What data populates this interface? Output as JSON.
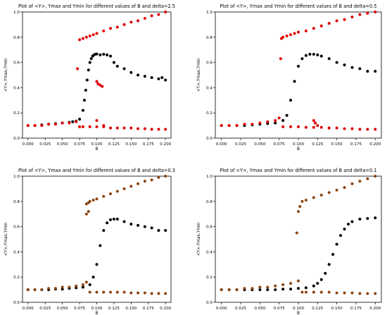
{
  "chart_data": [
    {
      "type": "scatter",
      "title": "Plot of <Y>, Ymax and Ymin for different values of B and delta=2.5",
      "xlabel": "B",
      "ylabel": "<Y>,Ymax,Ymin",
      "xlim": [
        -0.008,
        0.208
      ],
      "ylim": [
        0,
        1.0
      ],
      "xticks": [
        "0.000",
        "0.025",
        "0.050",
        "0.075",
        "0.100",
        "0.125",
        "0.150",
        "0.175",
        "0.200"
      ],
      "yticks": [
        "0.0",
        "0.2",
        "0.4",
        "0.6",
        "0.8",
        "1.0"
      ],
      "grid": false,
      "series": [
        {
          "color": "#000000",
          "role": "mean",
          "x": [
            0.0,
            0.01,
            0.02,
            0.03,
            0.04,
            0.05,
            0.06,
            0.065,
            0.07,
            0.075,
            0.08,
            0.082,
            0.084,
            0.086,
            0.088,
            0.09,
            0.092,
            0.094,
            0.096,
            0.098,
            0.1,
            0.105,
            0.11,
            0.115,
            0.12,
            0.125,
            0.13,
            0.14,
            0.15,
            0.16,
            0.17,
            0.18,
            0.19,
            0.195,
            0.2
          ],
          "y": [
            0.1,
            0.1,
            0.105,
            0.11,
            0.115,
            0.12,
            0.125,
            0.13,
            0.135,
            0.15,
            0.22,
            0.3,
            0.38,
            0.46,
            0.54,
            0.6,
            0.63,
            0.65,
            0.66,
            0.665,
            0.667,
            0.66,
            0.665,
            0.66,
            0.65,
            0.6,
            0.57,
            0.55,
            0.52,
            0.5,
            0.49,
            0.48,
            0.47,
            0.48,
            0.46
          ]
        },
        {
          "color": "#e00000",
          "role": "max",
          "x": [
            0.075,
            0.08,
            0.085,
            0.09,
            0.095,
            0.1,
            0.11,
            0.12,
            0.13,
            0.14,
            0.15,
            0.16,
            0.17,
            0.18,
            0.19,
            0.2
          ],
          "y": [
            0.78,
            0.79,
            0.8,
            0.81,
            0.82,
            0.83,
            0.85,
            0.87,
            0.88,
            0.9,
            0.92,
            0.93,
            0.95,
            0.97,
            0.98,
            1.0
          ]
        },
        {
          "color": "#e00000",
          "role": "min",
          "x": [
            0.0,
            0.01,
            0.02,
            0.03,
            0.04,
            0.05,
            0.06,
            0.07,
            0.075,
            0.08,
            0.09,
            0.1,
            0.11,
            0.12,
            0.13,
            0.14,
            0.15,
            0.16,
            0.17,
            0.18,
            0.19,
            0.2
          ],
          "y": [
            0.1,
            0.1,
            0.1,
            0.11,
            0.11,
            0.12,
            0.12,
            0.13,
            0.09,
            0.09,
            0.09,
            0.09,
            0.09,
            0.08,
            0.08,
            0.08,
            0.08,
            0.075,
            0.075,
            0.07,
            0.07,
            0.07
          ]
        },
        {
          "color": "#e00000",
          "role": "scatter",
          "x": [
            0.072,
            0.1,
            0.102,
            0.105,
            0.108,
            0.1,
            0.11
          ],
          "y": [
            0.55,
            0.45,
            0.43,
            0.42,
            0.41,
            0.14,
            0.1
          ]
        }
      ]
    },
    {
      "type": "scatter",
      "title": "Plot of <Y>, Ymax and Ymin for different values of B and delta=0.5",
      "xlabel": "B",
      "ylabel": "<Y>,Ymax,Ymin",
      "xlim": [
        -0.008,
        0.208
      ],
      "ylim": [
        0,
        1.0
      ],
      "xticks": [
        "0.000",
        "0.025",
        "0.050",
        "0.075",
        "0.100",
        "0.125",
        "0.150",
        "0.175",
        "0.200"
      ],
      "yticks": [
        "0.0",
        "0.2",
        "0.4",
        "0.6",
        "0.8",
        "1.0"
      ],
      "grid": false,
      "series": [
        {
          "color": "#000000",
          "role": "mean",
          "x": [
            0.0,
            0.01,
            0.02,
            0.03,
            0.04,
            0.05,
            0.06,
            0.07,
            0.08,
            0.085,
            0.09,
            0.095,
            0.1,
            0.105,
            0.11,
            0.115,
            0.12,
            0.125,
            0.13,
            0.14,
            0.15,
            0.16,
            0.17,
            0.18,
            0.19,
            0.2
          ],
          "y": [
            0.1,
            0.1,
            0.1,
            0.1,
            0.105,
            0.11,
            0.115,
            0.12,
            0.14,
            0.18,
            0.3,
            0.45,
            0.57,
            0.63,
            0.655,
            0.665,
            0.665,
            0.66,
            0.65,
            0.63,
            0.6,
            0.58,
            0.56,
            0.55,
            0.53,
            0.53
          ]
        },
        {
          "color": "#e00000",
          "role": "max",
          "x": [
            0.078,
            0.08,
            0.085,
            0.09,
            0.095,
            0.1,
            0.11,
            0.12,
            0.13,
            0.14,
            0.15,
            0.16,
            0.17,
            0.18,
            0.19,
            0.2
          ],
          "y": [
            0.79,
            0.8,
            0.81,
            0.82,
            0.83,
            0.84,
            0.85,
            0.87,
            0.89,
            0.91,
            0.93,
            0.94,
            0.96,
            0.98,
            0.99,
            1.0
          ]
        },
        {
          "color": "#e00000",
          "role": "min",
          "x": [
            0.0,
            0.01,
            0.02,
            0.03,
            0.04,
            0.05,
            0.06,
            0.07,
            0.075,
            0.08,
            0.09,
            0.1,
            0.11,
            0.12,
            0.13,
            0.14,
            0.15,
            0.16,
            0.17,
            0.18,
            0.19,
            0.2
          ],
          "y": [
            0.1,
            0.1,
            0.1,
            0.11,
            0.11,
            0.12,
            0.13,
            0.14,
            0.16,
            0.09,
            0.09,
            0.09,
            0.085,
            0.085,
            0.085,
            0.08,
            0.08,
            0.075,
            0.075,
            0.07,
            0.07,
            0.07
          ]
        },
        {
          "color": "#e00000",
          "role": "scatter",
          "x": [
            0.077,
            0.12,
            0.122,
            0.125
          ],
          "y": [
            0.63,
            0.14,
            0.12,
            0.1
          ]
        }
      ]
    },
    {
      "type": "scatter",
      "title": "Plot of <Y>, Ymax and Ymin for different values of B and delta=0.3",
      "xlabel": "B",
      "ylabel": "<Y>,Ymax,Ymin",
      "xlim": [
        -0.008,
        0.208
      ],
      "ylim": [
        0,
        1.0
      ],
      "xticks": [
        "0.000",
        "0.025",
        "0.050",
        "0.075",
        "0.100",
        "0.125",
        "0.150",
        "0.175",
        "0.200"
      ],
      "yticks": [
        "0.0",
        "0.2",
        "0.4",
        "0.6",
        "0.8",
        "1.0"
      ],
      "grid": false,
      "series": [
        {
          "color": "#000000",
          "role": "mean",
          "x": [
            0.0,
            0.01,
            0.02,
            0.03,
            0.04,
            0.05,
            0.06,
            0.07,
            0.08,
            0.09,
            0.095,
            0.1,
            0.105,
            0.11,
            0.115,
            0.12,
            0.125,
            0.13,
            0.14,
            0.15,
            0.16,
            0.17,
            0.18,
            0.19,
            0.2
          ],
          "y": [
            0.1,
            0.1,
            0.1,
            0.1,
            0.105,
            0.105,
            0.11,
            0.115,
            0.12,
            0.14,
            0.2,
            0.3,
            0.45,
            0.57,
            0.63,
            0.655,
            0.66,
            0.66,
            0.64,
            0.62,
            0.61,
            0.6,
            0.59,
            0.57,
            0.57
          ]
        },
        {
          "color": "#8b4513",
          "role": "max",
          "x": [
            0.085,
            0.088,
            0.09,
            0.095,
            0.1,
            0.11,
            0.12,
            0.13,
            0.14,
            0.15,
            0.16,
            0.17,
            0.18,
            0.19,
            0.2
          ],
          "y": [
            0.78,
            0.79,
            0.8,
            0.81,
            0.82,
            0.84,
            0.86,
            0.88,
            0.9,
            0.92,
            0.94,
            0.96,
            0.97,
            0.99,
            1.0
          ]
        },
        {
          "color": "#8b4513",
          "role": "min",
          "x": [
            0.0,
            0.01,
            0.02,
            0.03,
            0.04,
            0.05,
            0.06,
            0.07,
            0.08,
            0.085,
            0.09,
            0.1,
            0.11,
            0.12,
            0.13,
            0.14,
            0.15,
            0.16,
            0.17,
            0.18,
            0.19,
            0.2
          ],
          "y": [
            0.1,
            0.1,
            0.1,
            0.11,
            0.11,
            0.12,
            0.12,
            0.13,
            0.14,
            0.16,
            0.08,
            0.08,
            0.08,
            0.08,
            0.08,
            0.08,
            0.075,
            0.075,
            0.075,
            0.07,
            0.07,
            0.07
          ]
        },
        {
          "color": "#8b4513",
          "role": "scatter",
          "x": [
            0.085,
            0.088
          ],
          "y": [
            0.7,
            0.72
          ]
        }
      ]
    },
    {
      "type": "scatter",
      "title": "Plot of <Y>, Ymax and Ymin for different values of B and delta=0.1",
      "xlabel": "B",
      "ylabel": "<Y>,Ymax,Ymin",
      "xlim": [
        -0.008,
        0.208
      ],
      "ylim": [
        0,
        1.0
      ],
      "xticks": [
        "0.000",
        "0.025",
        "0.050",
        "0.075",
        "0.100",
        "0.125",
        "0.150",
        "0.175",
        "0.200"
      ],
      "yticks": [
        "0.0",
        "0.2",
        "0.4",
        "0.6",
        "0.8",
        "1.0"
      ],
      "grid": false,
      "series": [
        {
          "color": "#000000",
          "role": "mean",
          "x": [
            0.0,
            0.01,
            0.02,
            0.03,
            0.04,
            0.05,
            0.06,
            0.07,
            0.08,
            0.09,
            0.1,
            0.11,
            0.12,
            0.125,
            0.13,
            0.135,
            0.14,
            0.145,
            0.15,
            0.155,
            0.16,
            0.165,
            0.17,
            0.18,
            0.19,
            0.2
          ],
          "y": [
            0.1,
            0.1,
            0.1,
            0.1,
            0.1,
            0.1,
            0.1,
            0.1,
            0.105,
            0.105,
            0.11,
            0.115,
            0.13,
            0.15,
            0.18,
            0.23,
            0.3,
            0.38,
            0.46,
            0.53,
            0.58,
            0.62,
            0.64,
            0.66,
            0.665,
            0.67
          ]
        },
        {
          "color": "#8b4513",
          "role": "max",
          "x": [
            0.1,
            0.102,
            0.105,
            0.11,
            0.12,
            0.13,
            0.14,
            0.15,
            0.16,
            0.17,
            0.18,
            0.19,
            0.2
          ],
          "y": [
            0.72,
            0.76,
            0.8,
            0.81,
            0.83,
            0.85,
            0.87,
            0.89,
            0.91,
            0.94,
            0.96,
            0.98,
            1.0
          ]
        },
        {
          "color": "#8b4513",
          "role": "min",
          "x": [
            0.0,
            0.01,
            0.02,
            0.03,
            0.04,
            0.05,
            0.06,
            0.07,
            0.08,
            0.09,
            0.1,
            0.105,
            0.11,
            0.12,
            0.13,
            0.14,
            0.15,
            0.16,
            0.17,
            0.18,
            0.19,
            0.2
          ],
          "y": [
            0.1,
            0.1,
            0.1,
            0.11,
            0.11,
            0.12,
            0.12,
            0.13,
            0.14,
            0.15,
            0.17,
            0.08,
            0.08,
            0.08,
            0.08,
            0.08,
            0.075,
            0.075,
            0.075,
            0.07,
            0.07,
            0.07
          ]
        },
        {
          "color": "#8b4513",
          "role": "scatter",
          "x": [
            0.098
          ],
          "y": [
            0.55
          ]
        }
      ]
    }
  ]
}
